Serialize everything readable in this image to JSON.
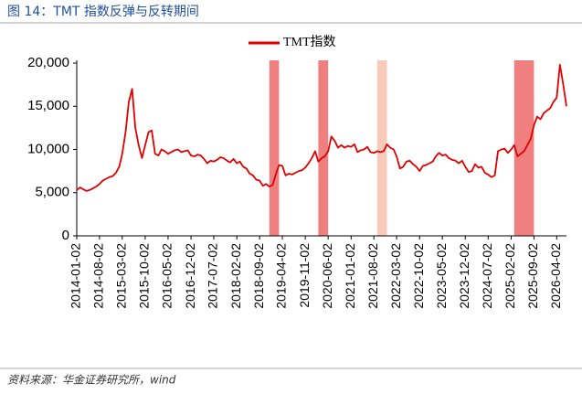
{
  "chart_data": {
    "type": "line",
    "title": "图 14：TMT 指数反弹与反转期间",
    "source": "资料来源：华金证券研究所，wind",
    "x": [
      "2014-01-02",
      "2014-02-02",
      "2014-03-02",
      "2014-04-02",
      "2014-05-02",
      "2014-06-02",
      "2014-07-02",
      "2014-08-02",
      "2014-09-02",
      "2014-10-02",
      "2014-11-02",
      "2014-12-02",
      "2015-01-02",
      "2015-02-02",
      "2015-03-02",
      "2015-04-02",
      "2015-05-02",
      "2015-06-02",
      "2015-07-02",
      "2015-08-02",
      "2015-09-02",
      "2015-10-02",
      "2015-11-02",
      "2015-12-02",
      "2016-01-02",
      "2016-02-02",
      "2016-03-02",
      "2016-04-02",
      "2016-05-02",
      "2016-06-02",
      "2016-07-02",
      "2016-08-02",
      "2016-09-02",
      "2016-10-02",
      "2016-11-02",
      "2016-12-02",
      "2017-01-02",
      "2017-02-02",
      "2017-03-02",
      "2017-04-02",
      "2017-05-02",
      "2017-06-02",
      "2017-07-02",
      "2017-08-02",
      "2017-09-02",
      "2017-10-02",
      "2017-11-02",
      "2017-12-02",
      "2018-01-02",
      "2018-02-02",
      "2018-03-02",
      "2018-04-02",
      "2018-05-02",
      "2018-06-02",
      "2018-07-02",
      "2018-08-02",
      "2018-09-02",
      "2018-10-02",
      "2018-11-02",
      "2018-12-02",
      "2019-01-02",
      "2019-02-02",
      "2019-03-02",
      "2019-04-02",
      "2019-05-02",
      "2019-06-02",
      "2019-07-02",
      "2019-08-02",
      "2019-09-02",
      "2019-10-02",
      "2019-11-02",
      "2019-12-02",
      "2020-01-02",
      "2020-02-02",
      "2020-03-02",
      "2020-04-02",
      "2020-05-02",
      "2020-06-02",
      "2020-07-02",
      "2020-08-02",
      "2020-09-02",
      "2020-10-02",
      "2020-11-02",
      "2020-12-02",
      "2021-01-02",
      "2021-02-02",
      "2021-03-02",
      "2021-04-02",
      "2021-05-02",
      "2021-06-02",
      "2021-07-02",
      "2021-08-02",
      "2021-09-02",
      "2021-10-02",
      "2021-11-02",
      "2021-12-02",
      "2022-01-02",
      "2022-02-02",
      "2022-03-02",
      "2022-04-02",
      "2022-05-02",
      "2022-06-02",
      "2022-07-02",
      "2022-08-02",
      "2022-09-02",
      "2022-10-02",
      "2022-11-02",
      "2022-12-02",
      "2023-01-02",
      "2023-02-02",
      "2023-03-02",
      "2023-04-02",
      "2023-05-02",
      "2023-06-02",
      "2023-07-02",
      "2023-08-02",
      "2023-09-02",
      "2023-10-02",
      "2023-11-02",
      "2023-12-02",
      "2024-01-02",
      "2024-02-02",
      "2024-03-02",
      "2024-04-02",
      "2024-05-02",
      "2024-06-02",
      "2024-07-02",
      "2024-08-02",
      "2024-09-02",
      "2024-10-02",
      "2024-11-02",
      "2024-12-02",
      "2025-01-02",
      "2025-02-02",
      "2025-03-02",
      "2025-04-02",
      "2025-05-02",
      "2025-06-02",
      "2025-07-02",
      "2025-08-02",
      "2025-09-02",
      "2025-10-02",
      "2025-11-02",
      "2025-12-02",
      "2026-01-02",
      "2026-02-02",
      "2026-03-02",
      "2026-04-02",
      "2026-05-02",
      "2026-06-02",
      "2026-07-02"
    ],
    "series": [
      {
        "name": "TMT指数",
        "color": "#e00000",
        "values": [
          5300,
          5600,
          5400,
          5200,
          5300,
          5500,
          5700,
          6000,
          6400,
          6600,
          6800,
          6900,
          7300,
          8000,
          9500,
          12000,
          15500,
          17000,
          12500,
          10500,
          9000,
          10500,
          12000,
          12200,
          9500,
          9300,
          10000,
          9800,
          9500,
          9700,
          9900,
          10000,
          9700,
          9800,
          9900,
          9300,
          9200,
          9400,
          9300,
          8900,
          8400,
          8700,
          8600,
          8800,
          9100,
          9000,
          8700,
          8500,
          8900,
          8400,
          8600,
          8000,
          7800,
          7200,
          7000,
          6500,
          6400,
          5800,
          6000,
          5700,
          5900,
          7200,
          8200,
          8100,
          7000,
          7200,
          7100,
          7300,
          7500,
          7600,
          7900,
          8400,
          9000,
          9800,
          8600,
          9000,
          9200,
          9800,
          11500,
          11000,
          10200,
          10500,
          10200,
          10400,
          10300,
          10600,
          9700,
          9900,
          10000,
          10300,
          9700,
          9600,
          9800,
          9700,
          9800,
          10600,
          10200,
          10000,
          9200,
          7800,
          8000,
          8600,
          8700,
          8300,
          8000,
          7500,
          8100,
          8200,
          8400,
          8600,
          9200,
          9600,
          9300,
          9400,
          9000,
          8800,
          8700,
          8400,
          8700,
          8000,
          7400,
          7500,
          8300,
          7900,
          8000,
          7300,
          7100,
          6800,
          7000,
          9800,
          10000,
          10100,
          9600,
          10000,
          10500,
          9200,
          9500,
          9800,
          10500,
          11200,
          12800,
          13800,
          13500,
          14200,
          14500,
          14800,
          15500,
          16000,
          19800,
          17500,
          15000
        ]
      }
    ],
    "spans": [
      {
        "start": "2018-12-02",
        "end": "2019-03-02",
        "color": "#f08080"
      },
      {
        "start": "2020-03-02",
        "end": "2020-06-02",
        "color": "#f08080"
      },
      {
        "start": "2021-09-02",
        "end": "2021-12-02",
        "color": "#f9c9b9"
      },
      {
        "start": "2025-03-02",
        "end": "2025-09-02",
        "color": "#f08080"
      }
    ],
    "xlim": [
      "2014-01-02",
      "2026-07-02"
    ],
    "xticks": [
      "2014-01-02",
      "2014-08-02",
      "2015-03-02",
      "2015-10-02",
      "2016-05-02",
      "2016-12-02",
      "2017-07-02",
      "2018-02-02",
      "2018-09-02",
      "2019-04-02",
      "2019-11-02",
      "2020-06-02",
      "2021-01-02",
      "2021-08-02",
      "2022-03-02",
      "2022-10-02",
      "2023-05-02",
      "2023-12-02",
      "2024-07-02",
      "2025-02-02",
      "2025-09-02",
      "2026-04-02"
    ],
    "ylim": [
      0,
      20000
    ],
    "yticks": [
      0,
      {
        "value": 5000,
        "label": "5,000"
      },
      {
        "value": 10000,
        "label": "10,000"
      },
      {
        "value": 15000,
        "label": "15,000"
      },
      {
        "value": 20000,
        "label": "20,000"
      }
    ],
    "legend": "top",
    "grid": false
  }
}
